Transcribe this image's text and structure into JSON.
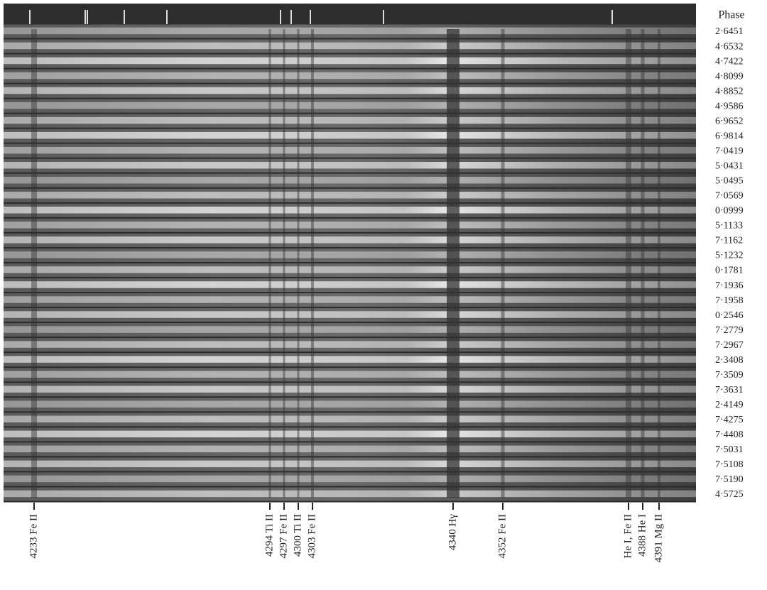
{
  "figure": {
    "phase_header": "Phase",
    "phases": [
      "2·6451",
      "4·6532",
      "4·7422",
      "4·8099",
      "4·8852",
      "4·9586",
      "6·9652",
      "6·9814",
      "7·0419",
      "5·0431",
      "5·0495",
      "7·0569",
      "0·0999",
      "5·1133",
      "7·1162",
      "5·1232",
      "0·1781",
      "7·1936",
      "7·1958",
      "0·2546",
      "7·2779",
      "7·2967",
      "2·3408",
      "7·3509",
      "7·3631",
      "2·4149",
      "7·4275",
      "7·4408",
      "7·5031",
      "7·5108",
      "7·5190",
      "4·5725"
    ],
    "lines": [
      "4233 Fe II",
      "4294 Ti II",
      "4297 Fe II",
      "4300 Ti II",
      "4303 Fe II",
      "4340 Hγ",
      "4352 Fe II",
      "He I, Fe II",
      "4388 He I",
      "4391 Mg II"
    ]
  }
}
